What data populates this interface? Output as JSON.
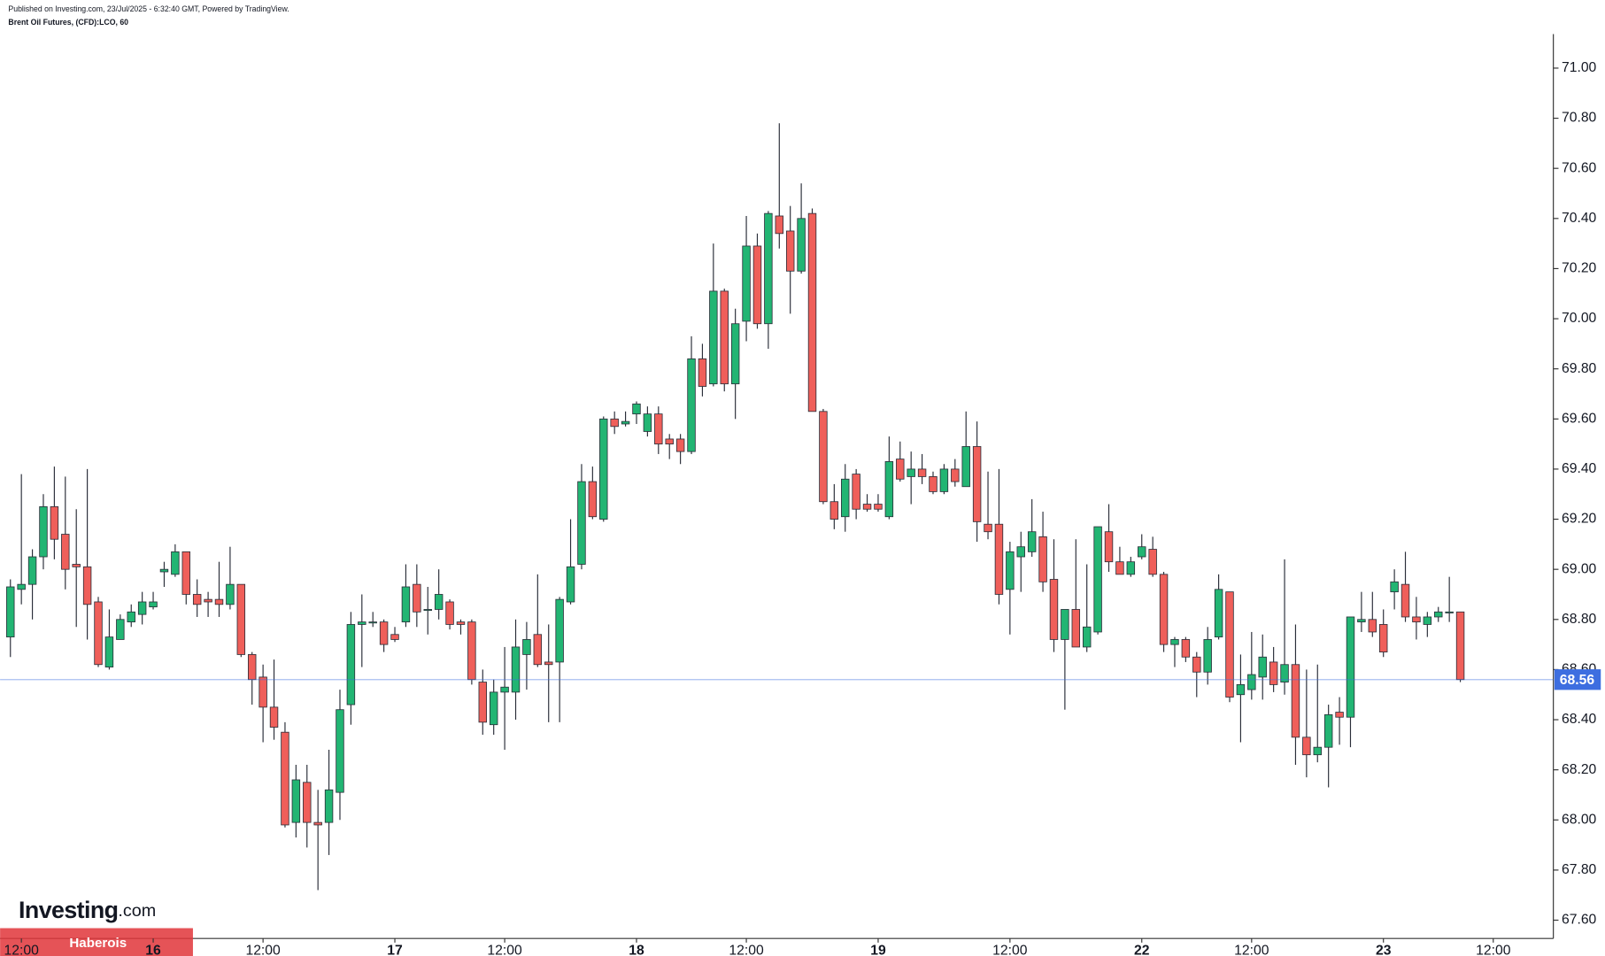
{
  "chart_data": {
    "type": "candlestick",
    "subtitle": "Published on Investing.com, 23/Jul/2025 - 6:32:40 GMT, Powered by TradingView.",
    "title": "Brent Oil Futures, (CFD):LCO, 60",
    "up_color": "#22b573",
    "down_color": "#ef5f5a",
    "open": [
      68.73,
      68.92,
      68.94,
      69.05,
      69.25,
      69.14,
      69.02,
      69.01,
      68.87,
      68.61,
      68.72,
      68.79,
      68.82,
      68.85,
      68.99,
      68.98,
      69.07,
      68.9,
      68.88,
      68.88,
      68.86,
      68.94,
      68.66,
      68.57,
      68.45,
      68.35,
      67.99,
      68.15,
      67.99,
      67.99,
      68.11,
      68.46,
      68.78,
      68.79,
      68.79,
      68.74,
      68.79,
      68.94,
      68.84,
      68.84,
      68.87,
      68.79,
      68.79,
      68.55,
      68.38,
      68.51,
      68.51,
      68.66,
      68.74,
      68.63,
      68.63,
      68.87,
      69.02,
      69.35,
      69.2,
      69.6,
      69.58,
      69.62,
      69.55,
      69.62,
      69.52,
      69.52,
      69.47,
      69.84,
      69.74,
      70.11,
      69.74,
      69.99,
      70.29,
      69.98,
      70.41,
      70.35,
      70.19,
      70.42,
      69.63,
      69.27,
      69.21,
      69.38,
      69.26,
      69.26,
      69.21,
      69.44,
      69.37,
      69.4,
      69.37,
      69.31,
      69.4,
      69.33,
      69.49,
      69.18,
      69.18,
      68.92,
      69.05,
      69.07,
      69.13,
      68.96,
      68.72,
      68.84,
      68.69,
      68.75,
      69.15,
      69.03,
      68.98,
      69.05,
      69.08,
      68.98,
      68.7,
      68.72,
      68.65,
      68.59,
      68.73,
      68.91,
      68.5,
      68.52,
      68.57,
      68.63,
      68.55,
      68.62,
      68.33,
      68.26,
      68.29,
      68.43,
      68.41,
      68.79,
      68.8,
      68.78,
      68.91,
      68.94,
      68.81,
      68.78,
      68.81,
      68.83,
      68.83
    ],
    "high": [
      68.96,
      69.38,
      69.08,
      69.3,
      69.41,
      69.37,
      69.24,
      69.4,
      68.89,
      68.84,
      68.82,
      68.86,
      68.91,
      68.91,
      69.03,
      69.1,
      69.07,
      68.96,
      68.91,
      69.03,
      69.09,
      68.94,
      68.67,
      68.62,
      68.64,
      68.39,
      68.22,
      68.22,
      68.12,
      68.28,
      68.52,
      68.83,
      68.9,
      68.83,
      68.8,
      68.77,
      69.02,
      69.02,
      68.93,
      69.0,
      68.88,
      68.8,
      68.8,
      68.6,
      68.56,
      68.69,
      68.8,
      68.79,
      68.98,
      68.78,
      68.89,
      69.2,
      69.42,
      69.41,
      69.61,
      69.63,
      69.63,
      69.67,
      69.65,
      69.65,
      69.54,
      69.54,
      69.93,
      69.9,
      70.3,
      70.12,
      70.04,
      70.41,
      70.34,
      70.43,
      70.78,
      70.45,
      70.54,
      70.44,
      69.64,
      69.34,
      69.42,
      69.4,
      69.3,
      69.3,
      69.53,
      69.51,
      69.47,
      69.46,
      69.39,
      69.42,
      69.44,
      69.63,
      69.59,
      69.39,
      69.4,
      69.11,
      69.15,
      69.28,
      69.23,
      69.12,
      68.84,
      69.12,
      69.02,
      69.17,
      69.26,
      69.09,
      69.05,
      69.14,
      69.13,
      68.99,
      68.73,
      68.73,
      68.67,
      68.77,
      68.98,
      68.91,
      68.66,
      68.75,
      68.74,
      68.69,
      69.04,
      68.78,
      68.6,
      68.62,
      68.46,
      68.49,
      68.81,
      68.91,
      68.91,
      68.84,
      69.0,
      69.07,
      68.89,
      68.83,
      68.85,
      68.97,
      68.83
    ],
    "low": [
      68.65,
      68.86,
      68.8,
      69.0,
      69.04,
      68.92,
      68.77,
      68.72,
      68.61,
      68.6,
      68.72,
      68.77,
      68.78,
      68.84,
      68.93,
      68.97,
      68.86,
      68.81,
      68.81,
      68.81,
      68.84,
      68.65,
      68.46,
      68.31,
      68.32,
      67.97,
      67.93,
      67.89,
      67.72,
      67.86,
      68.0,
      68.38,
      68.61,
      68.77,
      68.67,
      68.71,
      68.77,
      68.77,
      68.74,
      68.8,
      68.76,
      68.74,
      68.54,
      68.34,
      68.34,
      68.28,
      68.4,
      68.52,
      68.61,
      68.39,
      68.39,
      68.86,
      69.0,
      69.2,
      69.19,
      69.54,
      69.57,
      69.58,
      69.53,
      69.46,
      69.44,
      69.42,
      69.46,
      69.69,
      69.73,
      69.71,
      69.6,
      69.91,
      69.96,
      69.88,
      70.28,
      70.02,
      70.18,
      69.63,
      69.26,
      69.16,
      69.15,
      69.2,
      69.23,
      69.23,
      69.2,
      69.35,
      69.26,
      69.34,
      69.3,
      69.3,
      69.33,
      69.33,
      69.11,
      69.12,
      68.86,
      68.74,
      68.91,
      69.05,
      68.91,
      68.67,
      68.44,
      68.69,
      68.67,
      68.74,
      68.99,
      68.98,
      68.97,
      69.04,
      68.97,
      68.67,
      68.61,
      68.63,
      68.49,
      68.54,
      68.72,
      68.47,
      68.31,
      68.48,
      68.48,
      68.51,
      68.5,
      68.22,
      68.17,
      68.23,
      68.13,
      68.3,
      68.29,
      68.75,
      68.73,
      68.65,
      68.84,
      68.79,
      68.72,
      68.73,
      68.79,
      68.79,
      68.55
    ],
    "close": [
      68.93,
      68.94,
      69.05,
      69.25,
      69.12,
      69.0,
      69.01,
      68.86,
      68.62,
      68.73,
      68.8,
      68.83,
      68.87,
      68.87,
      69.0,
      69.07,
      68.9,
      68.86,
      68.87,
      68.86,
      68.94,
      68.66,
      68.56,
      68.45,
      68.37,
      67.98,
      68.16,
      67.99,
      67.98,
      68.12,
      68.44,
      68.78,
      68.79,
      68.79,
      68.7,
      68.72,
      68.93,
      68.83,
      68.84,
      68.9,
      68.78,
      68.78,
      68.56,
      68.39,
      68.51,
      68.53,
      68.69,
      68.72,
      68.62,
      68.62,
      68.88,
      69.01,
      69.35,
      69.21,
      69.6,
      69.57,
      69.59,
      69.66,
      69.62,
      69.5,
      69.5,
      69.47,
      69.84,
      69.73,
      70.11,
      69.74,
      69.98,
      70.29,
      69.98,
      70.42,
      70.34,
      70.19,
      70.4,
      69.63,
      69.27,
      69.2,
      69.36,
      69.24,
      69.24,
      69.24,
      69.43,
      69.36,
      69.4,
      69.37,
      69.31,
      69.4,
      69.35,
      69.49,
      69.19,
      69.15,
      68.9,
      69.07,
      69.09,
      69.15,
      68.95,
      68.72,
      68.84,
      68.69,
      68.77,
      69.17,
      69.03,
      68.98,
      69.03,
      69.09,
      68.98,
      68.7,
      68.72,
      68.65,
      68.59,
      68.72,
      68.92,
      68.49,
      68.54,
      68.58,
      68.65,
      68.54,
      68.62,
      68.33,
      68.26,
      68.29,
      68.42,
      68.41,
      68.81,
      68.8,
      68.75,
      68.67,
      68.95,
      68.81,
      68.79,
      68.81,
      68.83,
      68.83,
      68.56
    ],
    "xlim": [
      -0.94,
      140.47
    ],
    "xticks": [
      {
        "value": 1,
        "label": "12:00"
      },
      {
        "value": 13,
        "label": "16"
      },
      {
        "value": 23,
        "label": "12:00"
      },
      {
        "value": 35,
        "label": "17"
      },
      {
        "value": 45,
        "label": "12:00"
      },
      {
        "value": 57,
        "label": "18"
      },
      {
        "value": 67,
        "label": "12:00"
      },
      {
        "value": 79,
        "label": "19"
      },
      {
        "value": 91,
        "label": "12:00"
      },
      {
        "value": 103,
        "label": "22"
      },
      {
        "value": 113,
        "label": "12:00"
      },
      {
        "value": 125,
        "label": "23"
      },
      {
        "value": 135,
        "label": "12:00"
      }
    ],
    "ylim": [
      67.527,
      71.136
    ],
    "yticks": [
      {
        "value": 67.6,
        "label": "67.60"
      },
      {
        "value": 67.8,
        "label": "67.80"
      },
      {
        "value": 68.0,
        "label": "68.00"
      },
      {
        "value": 68.2,
        "label": "68.20"
      },
      {
        "value": 68.4,
        "label": "68.40"
      },
      {
        "value": 68.6,
        "label": "68.60"
      },
      {
        "value": 68.8,
        "label": "68.80"
      },
      {
        "value": 69.0,
        "label": "69.00"
      },
      {
        "value": 69.2,
        "label": "69.20"
      },
      {
        "value": 69.4,
        "label": "69.40"
      },
      {
        "value": 69.6,
        "label": "69.60"
      },
      {
        "value": 69.8,
        "label": "69.80"
      },
      {
        "value": 70.0,
        "label": "70.00"
      },
      {
        "value": 70.2,
        "label": "70.20"
      },
      {
        "value": 70.4,
        "label": "70.40"
      },
      {
        "value": 70.6,
        "label": "70.60"
      },
      {
        "value": 70.8,
        "label": "70.80"
      },
      {
        "value": 71.0,
        "label": "71.00"
      }
    ],
    "last_price": 68.56,
    "last_price_color": "#3d6ee0",
    "logo": {
      "name": "Investing",
      "suffix": ".com"
    },
    "watermark": "Haberois"
  }
}
